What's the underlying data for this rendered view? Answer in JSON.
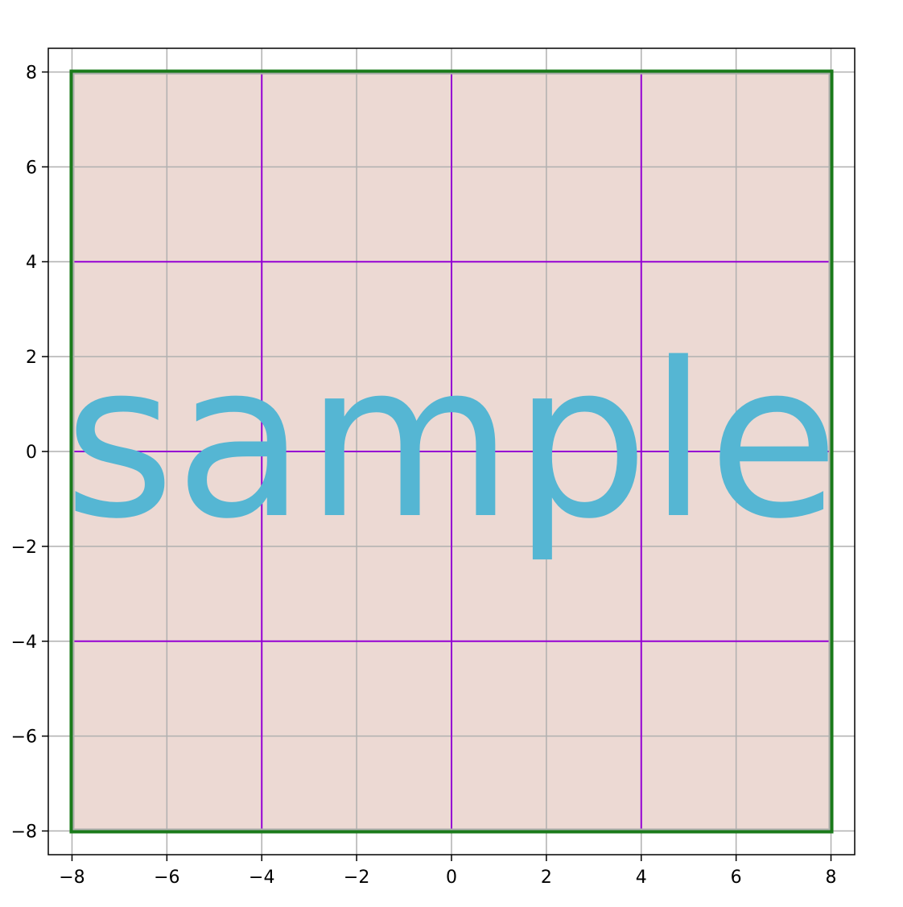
{
  "chart_data": {
    "type": "area",
    "title": "",
    "xlabel": "",
    "ylabel": "",
    "xlim": [
      -8.5,
      8.5
    ],
    "ylim": [
      -8.5,
      8.5
    ],
    "x_ticks": [
      -8,
      -6,
      -4,
      -2,
      0,
      2,
      4,
      6,
      8
    ],
    "y_ticks": [
      -8,
      -6,
      -4,
      -2,
      0,
      2,
      4,
      6,
      8
    ],
    "x_tick_labels": [
      "−8",
      "−6",
      "−4",
      "−2",
      "0",
      "2",
      "4",
      "6",
      "8"
    ],
    "y_tick_labels": [
      "−8",
      "−6",
      "−4",
      "−2",
      "0",
      "2",
      "4",
      "6",
      "8"
    ],
    "grid": true,
    "filled_square": {
      "x": [
        -8,
        8
      ],
      "y": [
        -8,
        8
      ],
      "fill_color": "#ecd9d3",
      "edge_color": "#1a7a1a"
    },
    "highlight_lines": {
      "x": [
        -4,
        0,
        4
      ],
      "y": [
        -4,
        0,
        4
      ],
      "color": "#9400d3"
    },
    "annotation": {
      "text": "sample",
      "x": 0,
      "y": 0,
      "color": "#55b6d3"
    },
    "colors": {
      "grid": "#b0b0b0",
      "axes": "#000000"
    }
  }
}
